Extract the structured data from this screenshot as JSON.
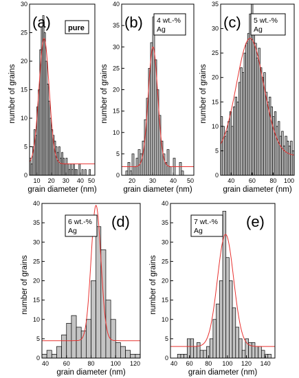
{
  "chart_data": [
    {
      "id": "a",
      "type": "bar",
      "panel_letter": "(a)",
      "legend": [
        "pure"
      ],
      "xlabel": "grain diameter (nm)",
      "ylabel": "number of grains",
      "xlim": [
        5,
        50
      ],
      "ylim": [
        0,
        30
      ],
      "xticks": [
        10,
        20,
        30,
        40,
        50
      ],
      "yticks": [
        0,
        5,
        10,
        15,
        20,
        25,
        30
      ],
      "bin_width": 1,
      "bin_centers": [
        5.5,
        6.5,
        7.5,
        8.5,
        9.5,
        10.5,
        11.5,
        12.5,
        13.5,
        14.5,
        15.5,
        16.5,
        17.5,
        18.5,
        19.5,
        20.5,
        21.5,
        22.5,
        23.5,
        24.5,
        25.5,
        26.5,
        27.5,
        28.5,
        29.5,
        30.5,
        31.5,
        32.5,
        33.5,
        34.5,
        35.5,
        36.5,
        37.5,
        38.5,
        39.5,
        40.5,
        41.5,
        42.5,
        43.5,
        44.5,
        45.5,
        46.5,
        47.5
      ],
      "values": [
        3,
        2,
        5,
        8,
        7,
        12,
        15,
        22,
        26,
        28,
        25,
        20,
        16,
        13,
        10,
        8,
        7,
        6,
        5,
        4,
        5,
        3,
        4,
        3,
        2,
        3,
        2,
        1,
        2,
        1,
        2,
        1,
        1,
        0,
        2,
        0,
        1,
        0,
        1,
        0,
        0,
        1,
        0
      ],
      "fit": {
        "type": "gaussian",
        "y0": 2,
        "A": 22,
        "xc": 15,
        "w": 3.5
      }
    },
    {
      "id": "b",
      "type": "bar",
      "panel_letter": "(b)",
      "legend": [
        "4 wt.-%",
        "Ag"
      ],
      "xlabel": "grain diameter (nm)",
      "ylabel": "number of grains",
      "xlim": [
        15,
        50
      ],
      "ylim": [
        0,
        40
      ],
      "xticks": [
        20,
        30,
        40,
        50
      ],
      "yticks": [
        0,
        5,
        10,
        15,
        20,
        25,
        30,
        35,
        40
      ],
      "bin_width": 1,
      "bin_centers": [
        17.5,
        18.5,
        19.5,
        20.5,
        21.5,
        22.5,
        23.5,
        24.5,
        25.5,
        26.5,
        27.5,
        28.5,
        29.5,
        30.5,
        31.5,
        32.5,
        33.5,
        34.5,
        35.5,
        36.5,
        37.5,
        38.5,
        39.5,
        40.5,
        41.5,
        42.5,
        43.5,
        44.5
      ],
      "values": [
        1,
        3,
        1,
        5,
        2,
        4,
        6,
        5,
        8,
        13,
        18,
        25,
        31,
        37,
        27,
        20,
        14,
        8,
        5,
        3,
        6,
        2,
        0,
        4,
        0,
        0,
        3,
        1
      ],
      "fit": {
        "type": "gaussian",
        "y0": 2,
        "A": 28,
        "xc": 30.2,
        "w": 2.3
      }
    },
    {
      "id": "c",
      "type": "bar",
      "panel_letter": "(c)",
      "legend": [
        "5 wt.-%",
        "Ag"
      ],
      "xlabel": "grain diameter (nm)",
      "ylabel": "number of grains",
      "xlim": [
        30,
        100
      ],
      "ylim": [
        0,
        35
      ],
      "xticks": [
        40,
        60,
        80,
        100
      ],
      "yticks": [
        0,
        5,
        10,
        15,
        20,
        25,
        30,
        35
      ],
      "bin_width": 1.7,
      "bin_centers": [
        31,
        32.7,
        34.4,
        36.1,
        37.8,
        39.5,
        41.2,
        42.9,
        44.6,
        46.3,
        48,
        49.7,
        51.4,
        53.1,
        54.8,
        56.5,
        58.2,
        59.9,
        61.6,
        63.3,
        65,
        66.7,
        68.4,
        70.1,
        71.8,
        73.5,
        75.2,
        76.9,
        78.6,
        80.3,
        82,
        83.7,
        85.4,
        87.1,
        88.8,
        90.5,
        92.2,
        93.9,
        95.6,
        97.3,
        99
      ],
      "values": [
        12,
        10,
        8,
        9,
        11,
        13,
        10,
        14,
        16,
        15,
        19,
        22,
        21,
        25,
        27,
        29,
        33,
        35,
        31,
        27,
        24,
        26,
        22,
        20,
        21,
        17,
        15,
        16,
        14,
        12,
        13,
        10,
        11,
        8,
        9,
        6,
        8,
        7,
        6,
        7,
        5
      ],
      "fit": {
        "type": "gaussian",
        "y0": 4,
        "A": 24,
        "xc": 58,
        "w": 13
      }
    },
    {
      "id": "d",
      "type": "bar",
      "panel_letter": "(d)",
      "legend": [
        "6 wt.-%",
        "Ag"
      ],
      "xlabel": "grain diameter (nm)",
      "ylabel": "number of grains",
      "xlim": [
        40,
        120
      ],
      "ylim": [
        0,
        40
      ],
      "xticks": [
        40,
        60,
        80,
        100,
        120
      ],
      "yticks": [
        0,
        5,
        10,
        15,
        20,
        25,
        30,
        35,
        40
      ],
      "bin_width": 4,
      "bin_centers": [
        42,
        46,
        50,
        54,
        58,
        62,
        66,
        70,
        74,
        78,
        82,
        86,
        90,
        94,
        98,
        102,
        106,
        110,
        114,
        118
      ],
      "values": [
        1,
        2,
        1,
        3,
        6,
        9,
        11,
        8,
        7,
        10,
        20,
        34,
        28,
        15,
        10,
        4,
        3,
        2,
        1,
        1
      ],
      "fit": {
        "type": "gaussian",
        "y0": 4.5,
        "A": 35,
        "xc": 84,
        "w": 4
      }
    },
    {
      "id": "e",
      "type": "bar",
      "panel_letter": "(e)",
      "legend": [
        "7 wt.-%",
        "Ag"
      ],
      "xlabel": "grain diameter (nm)",
      "ylabel": "number of grains",
      "xlim": [
        40,
        150
      ],
      "ylim": [
        0,
        40
      ],
      "xticks": [
        40,
        60,
        80,
        100,
        120,
        140
      ],
      "yticks": [
        0,
        5,
        10,
        15,
        20,
        25,
        30,
        35,
        40
      ],
      "bin_width": 3.4,
      "bin_centers": [
        45.7,
        49.1,
        52.5,
        55.9,
        59.3,
        62.7,
        66.1,
        69.5,
        72.9,
        76.3,
        79.7,
        83.1,
        86.5,
        89.9,
        93.3,
        96.7,
        100.1,
        103.5,
        106.9,
        110.3,
        113.7,
        117.1,
        120.5,
        123.9,
        127.3,
        130.7,
        134.1,
        137.5,
        140.9,
        144.3
      ],
      "values": [
        0,
        1,
        1,
        1,
        5,
        5,
        3,
        4,
        2,
        2,
        3,
        5,
        10,
        14,
        20,
        38,
        26,
        20,
        13,
        8,
        5,
        2,
        5,
        4,
        4,
        3,
        3,
        2,
        1,
        1
      ],
      "fit": {
        "type": "gaussian",
        "y0": 3,
        "A": 29,
        "xc": 98,
        "w": 8.5
      }
    }
  ]
}
